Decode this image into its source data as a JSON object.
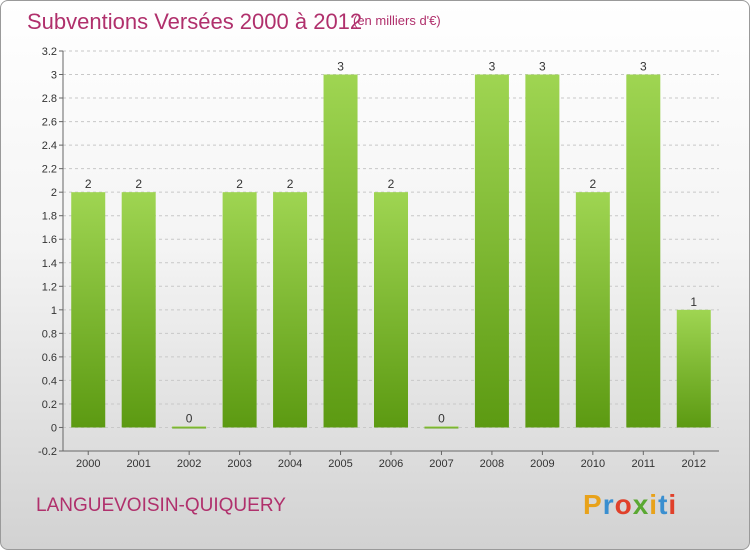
{
  "title": "Subventions Versées 2000 à 2012",
  "subtitle": "(en milliers d'€)",
  "commune": "LANGUEVOISIN-QUIQUERY",
  "logo": {
    "text": "Proxiti",
    "colors": [
      "#e8a21a",
      "#3a8fd0",
      "#e0402a",
      "#5aa832",
      "#e8a21a",
      "#3a8fd0",
      "#e0402a"
    ]
  },
  "colors": {
    "title": "#b0306c",
    "bar_top": "#9fd552",
    "bar_bottom": "#5c9a12"
  },
  "chart_data": {
    "type": "bar",
    "categories": [
      "2000",
      "2001",
      "2002",
      "2003",
      "2004",
      "2005",
      "2006",
      "2007",
      "2008",
      "2009",
      "2010",
      "2011",
      "2012"
    ],
    "values": [
      2,
      2,
      0,
      2,
      2,
      3,
      2,
      0,
      3,
      3,
      2,
      3,
      1
    ],
    "data_labels": [
      "2",
      "2",
      "0",
      "2",
      "2",
      "3",
      "2",
      "0",
      "3",
      "3",
      "2",
      "3",
      "1"
    ],
    "y_ticks": [
      "-0.2",
      "0",
      "0.2",
      "0.4",
      "0.6",
      "0.8",
      "1",
      "1.2",
      "1.4",
      "1.6",
      "1.8",
      "2",
      "2.2",
      "2.4",
      "2.6",
      "2.8",
      "3",
      "3.2"
    ],
    "ylim": [
      -0.2,
      3.2
    ],
    "grid": true
  }
}
